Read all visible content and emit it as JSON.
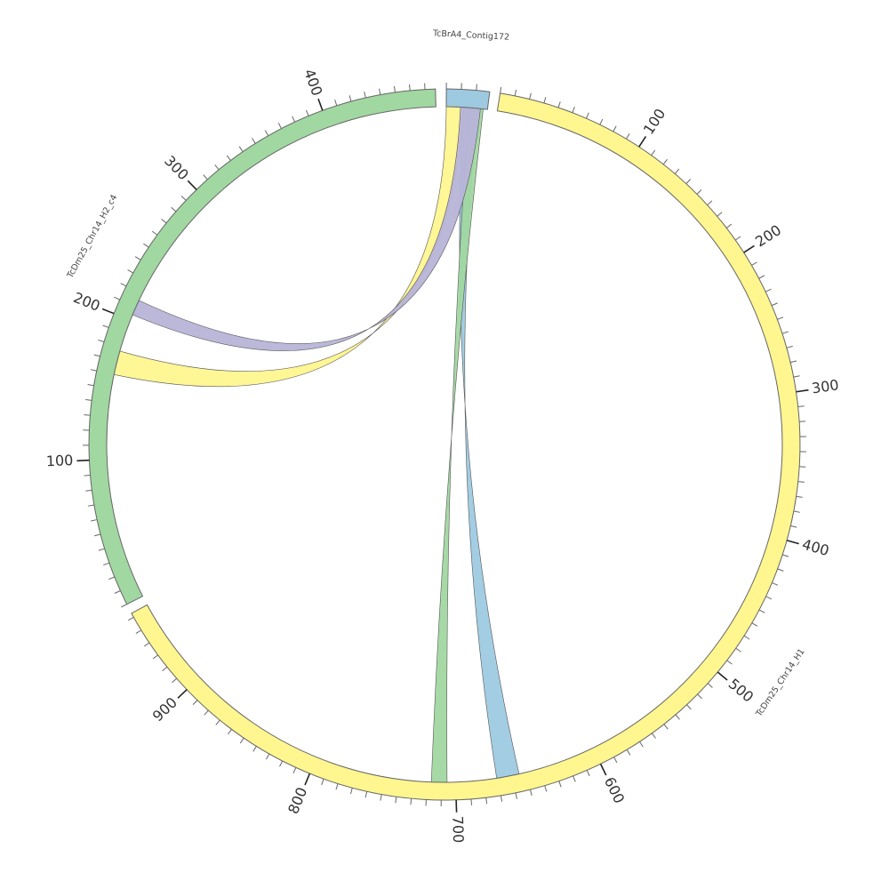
{
  "chart_data": {
    "type": "chord",
    "title": "",
    "tick_major_interval": 100,
    "tick_minor_interval": 10,
    "chromosomes": [
      {
        "name": "TcBrA4_Contig172",
        "length": 29,
        "color": "#9ecae1",
        "start_angle_deg": 0.3
      },
      {
        "name": "TcDm25_Chr14_H1",
        "length": 963,
        "color": "#fff68f",
        "start_angle_deg": 9.0
      },
      {
        "name": "TcDm25_Chr14_H2_c4",
        "length": 477,
        "color": "#a1d7a1",
        "start_angle_deg": 243.3
      }
    ],
    "links": [
      {
        "source": "TcBrA4_Contig172",
        "source_range": [
          12,
          22
        ],
        "target": "TcDm25_Chr14_H1",
        "target_range": [
          655,
          671
        ],
        "color": "#9ecae1"
      },
      {
        "source": "TcBrA4_Contig172",
        "source_range": [
          16,
          26
        ],
        "target": "TcDm25_Chr14_H1",
        "target_range": [
          706,
          717
        ],
        "color": "#a1d7a1"
      },
      {
        "source": "TcBrA4_Contig172",
        "source_range": [
          0,
          12
        ],
        "target": "TcDm25_Chr14_H2_c4",
        "target_range": [
          160,
          177
        ],
        "color": "#fff68f"
      },
      {
        "source": "TcBrA4_Contig172",
        "source_range": [
          10,
          24
        ],
        "target": "TcDm25_Chr14_H2_c4",
        "target_range": [
          204,
          215
        ],
        "color": "#b8b4d8"
      }
    ]
  }
}
